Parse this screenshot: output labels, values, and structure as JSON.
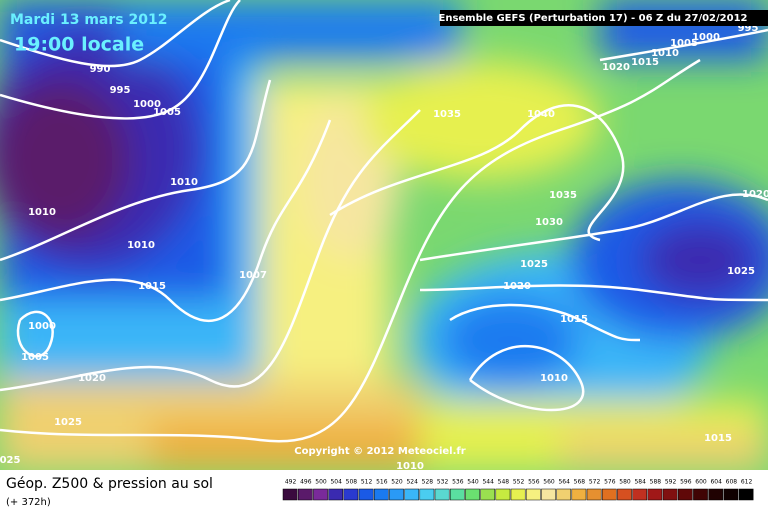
{
  "header": {
    "title": "Mardi 13 mars 2012",
    "subtitle": "19:00 locale",
    "model": "Ensemble GEFS (Perturbation 17)  -  06 Z du 27/02/2012",
    "copyright": "Copyright © 2012 Meteociel.fr"
  },
  "footer": {
    "label": "Géop. Z500 & pression au sol",
    "lead": "(+ 372h)"
  },
  "isobar_labels": [
    "990",
    "995",
    "1000",
    "1005",
    "1010",
    "1010",
    "1010",
    "1015",
    "1007",
    "1000",
    "1005",
    "1020",
    "1025",
    "025",
    "1035",
    "1040",
    "1020",
    "1015",
    "1010",
    "1005",
    "1000",
    "995",
    "1035",
    "1030",
    "1025",
    "1020",
    "1015",
    "1010",
    "1020",
    "1025",
    "1015",
    "1010"
  ],
  "colorbar": {
    "values": [
      492,
      496,
      500,
      504,
      508,
      512,
      516,
      520,
      524,
      528,
      532,
      536,
      540,
      544,
      548,
      552,
      556,
      560,
      564,
      568,
      572,
      576,
      580,
      584,
      588,
      592,
      596,
      600,
      604,
      608,
      612
    ],
    "colors": [
      "#3a0a3e",
      "#5a1a6a",
      "#7a2a9a",
      "#3a2ab0",
      "#2a3ad0",
      "#1a5ae6",
      "#1a7af0",
      "#2a9af6",
      "#3ab6f8",
      "#4acdf0",
      "#5ad8d0",
      "#5adfa0",
      "#6ae070",
      "#9ae050",
      "#c6ea40",
      "#e6f050",
      "#f6f080",
      "#f6e6a0",
      "#f0d070",
      "#f0b040",
      "#e69030",
      "#e07020",
      "#d65020",
      "#c03020",
      "#a01818",
      "#801010",
      "#600808",
      "#400404",
      "#200202",
      "#100000",
      "#000000"
    ]
  }
}
